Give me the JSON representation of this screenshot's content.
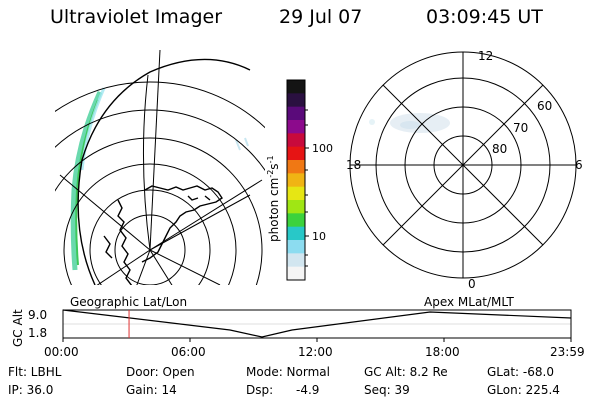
{
  "header": {
    "title": "Ultraviolet Imager",
    "date": "29 Jul 07",
    "time": "03:09:45 UT"
  },
  "colorbar": {
    "unit": "photon cm",
    "unit_exp": "-2",
    "unit_s": "s",
    "unit_s_exp": "-1",
    "tick_100": "100",
    "tick_10": "10",
    "colors": [
      "#141414",
      "#2a1040",
      "#5a0a7a",
      "#8c0a8c",
      "#c80a3c",
      "#e61414",
      "#f07814",
      "#f0b414",
      "#e6e614",
      "#a0e614",
      "#3cd23c",
      "#28c8c8",
      "#8cdcf0",
      "#d2e6f0",
      "#f5f5f5"
    ]
  },
  "polar": {
    "label_12": "12",
    "label_18": "18",
    "label_6": "6",
    "label_0": "0",
    "label_60": "60",
    "label_70": "70",
    "label_80": "80"
  },
  "timeline": {
    "label_left": "Geographic Lat/Lon",
    "label_right": "Apex MLat/MLT",
    "y_label": "GC Alt",
    "y_top": "9.0",
    "y_bottom": "1.8",
    "ticks": [
      "00:00",
      "06:00",
      "12:00",
      "18:00",
      "23:59"
    ],
    "marker_color": "#e03030",
    "marker_fraction": 0.13
  },
  "footer": {
    "filter": "Flt: LBHL",
    "door": "Door: Open",
    "mode": "Mode: Normal",
    "gc_alt": "GC Alt: 8.2 Re",
    "glat": "GLat: -68.0",
    "ip": "IP: 36.0",
    "gain": "Gain: 14",
    "dsp_label": "Dsp:",
    "dsp_value": "-4.9",
    "seq": "Seq: 39",
    "glon": "GLon: 225.4"
  }
}
